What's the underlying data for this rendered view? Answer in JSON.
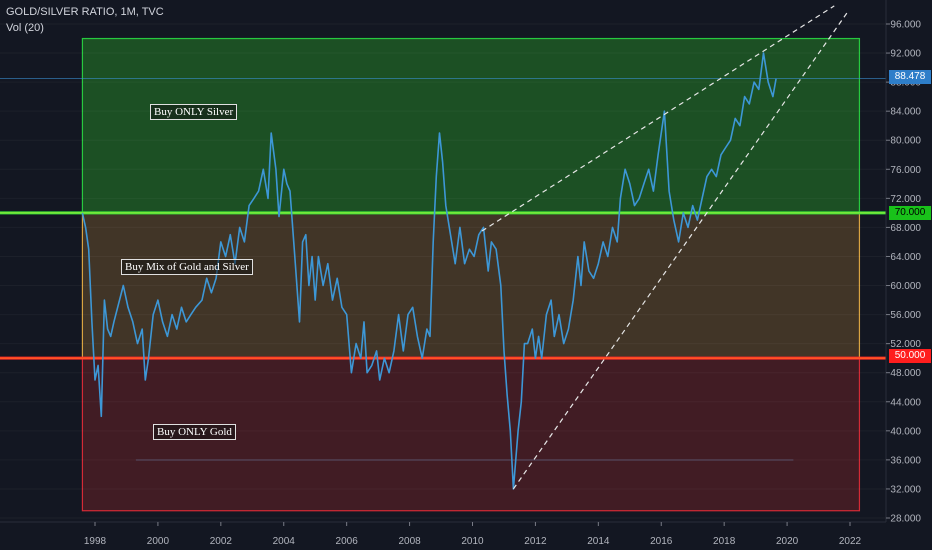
{
  "header": {
    "symbol_line": "GOLD/SILVER RATIO, 1M, TVC",
    "indicator_line": "Vol (20)"
  },
  "zones": [
    {
      "label": "Buy ONLY Silver",
      "from": 70,
      "to": 94,
      "fill": "#1e5b25",
      "border": "#27c93f"
    },
    {
      "label": "Buy Mix of Gold and Silver",
      "from": 50,
      "to": 70,
      "fill": "#4a3b28",
      "border": "#d9a441"
    },
    {
      "label": "Buy ONLY Gold",
      "from": 29,
      "to": 50,
      "fill": "#4a1d24",
      "border": "#d42a36"
    }
  ],
  "price_tags": {
    "current": "88.478",
    "upper": "70.000",
    "lower": "50.000"
  },
  "colors": {
    "background": "#131722",
    "series": "#3d97d6",
    "upper_line": "#39e639",
    "lower_line": "#ff2a2a",
    "trendline": "#e6e6e6"
  },
  "chart_data": {
    "type": "line",
    "title": "GOLD/SILVER RATIO, 1M, TVC",
    "xlabel": "",
    "ylabel": "",
    "xlim": [
      1996.6,
      2023.1
    ],
    "ylim": [
      27,
      99
    ],
    "x_ticks": [
      1998,
      2000,
      2002,
      2004,
      2006,
      2008,
      2010,
      2012,
      2014,
      2016,
      2018,
      2020,
      2022
    ],
    "y_ticks": [
      28,
      32,
      36,
      40,
      44,
      48,
      52,
      56,
      60,
      64,
      68,
      72,
      76,
      80,
      84,
      88,
      92,
      96
    ],
    "horizontal_levels": [
      {
        "name": "upper",
        "value": 70
      },
      {
        "name": "lower",
        "value": 50
      },
      {
        "name": "current",
        "value": 88.478
      }
    ],
    "trendlines": [
      {
        "from": [
          2010.3,
          67.5
        ],
        "to": [
          2021.5,
          98.5
        ]
      },
      {
        "from": [
          2011.3,
          32.0
        ],
        "to": [
          2021.9,
          97.5
        ]
      }
    ],
    "series": [
      {
        "values": [
          [
            1997.6,
            70.0
          ],
          [
            1997.7,
            68.0
          ],
          [
            1997.8,
            65.0
          ],
          [
            1997.9,
            55.0
          ],
          [
            1998.0,
            47.0
          ],
          [
            1998.1,
            49.0
          ],
          [
            1998.2,
            42.0
          ],
          [
            1998.3,
            58.0
          ],
          [
            1998.4,
            54.0
          ],
          [
            1998.5,
            53.0
          ],
          [
            1998.6,
            55.0
          ],
          [
            1998.75,
            57.5
          ],
          [
            1998.9,
            60.0
          ],
          [
            1999.05,
            57.0
          ],
          [
            1999.2,
            55.0
          ],
          [
            1999.35,
            52.0
          ],
          [
            1999.5,
            54.0
          ],
          [
            1999.6,
            47.0
          ],
          [
            1999.7,
            50.0
          ],
          [
            1999.85,
            56.0
          ],
          [
            2000.0,
            58.0
          ],
          [
            2000.15,
            55.0
          ],
          [
            2000.3,
            53.0
          ],
          [
            2000.45,
            56.0
          ],
          [
            2000.6,
            54.0
          ],
          [
            2000.75,
            57.0
          ],
          [
            2000.9,
            55.0
          ],
          [
            2001.05,
            56.0
          ],
          [
            2001.2,
            57.0
          ],
          [
            2001.4,
            58.0
          ],
          [
            2001.55,
            61.0
          ],
          [
            2001.7,
            59.0
          ],
          [
            2001.85,
            61.0
          ],
          [
            2002.0,
            66.0
          ],
          [
            2002.15,
            64.0
          ],
          [
            2002.3,
            67.0
          ],
          [
            2002.45,
            63.0
          ],
          [
            2002.6,
            68.0
          ],
          [
            2002.75,
            66.0
          ],
          [
            2002.9,
            71.0
          ],
          [
            2003.05,
            72.0
          ],
          [
            2003.2,
            73.0
          ],
          [
            2003.35,
            76.0
          ],
          [
            2003.5,
            72.0
          ],
          [
            2003.6,
            81.0
          ],
          [
            2003.75,
            76.0
          ],
          [
            2003.85,
            69.5
          ],
          [
            2004.0,
            76.0
          ],
          [
            2004.1,
            74.0
          ],
          [
            2004.2,
            73.0
          ],
          [
            2004.35,
            64.0
          ],
          [
            2004.5,
            55.0
          ],
          [
            2004.6,
            66.0
          ],
          [
            2004.7,
            67.0
          ],
          [
            2004.8,
            60.0
          ],
          [
            2004.9,
            64.0
          ],
          [
            2005.0,
            58.0
          ],
          [
            2005.1,
            64.0
          ],
          [
            2005.25,
            60.0
          ],
          [
            2005.4,
            63.0
          ],
          [
            2005.55,
            58.0
          ],
          [
            2005.7,
            61.0
          ],
          [
            2005.85,
            57.0
          ],
          [
            2006.0,
            56.0
          ],
          [
            2006.15,
            48.0
          ],
          [
            2006.3,
            52.0
          ],
          [
            2006.45,
            50.0
          ],
          [
            2006.55,
            55.0
          ],
          [
            2006.65,
            48.0
          ],
          [
            2006.8,
            49.0
          ],
          [
            2006.95,
            51.0
          ],
          [
            2007.05,
            47.0
          ],
          [
            2007.2,
            50.0
          ],
          [
            2007.35,
            48.0
          ],
          [
            2007.5,
            51.0
          ],
          [
            2007.65,
            56.0
          ],
          [
            2007.8,
            51.0
          ],
          [
            2007.95,
            56.0
          ],
          [
            2008.1,
            57.0
          ],
          [
            2008.25,
            53.0
          ],
          [
            2008.4,
            50.0
          ],
          [
            2008.55,
            54.0
          ],
          [
            2008.65,
            53.0
          ],
          [
            2008.75,
            66.0
          ],
          [
            2008.85,
            75.0
          ],
          [
            2008.95,
            81.0
          ],
          [
            2009.05,
            77.0
          ],
          [
            2009.15,
            71.0
          ],
          [
            2009.3,
            67.0
          ],
          [
            2009.45,
            63.0
          ],
          [
            2009.6,
            68.0
          ],
          [
            2009.75,
            63.0
          ],
          [
            2009.9,
            65.0
          ],
          [
            2010.05,
            64.0
          ],
          [
            2010.2,
            67.0
          ],
          [
            2010.35,
            68.0
          ],
          [
            2010.5,
            62.0
          ],
          [
            2010.6,
            66.0
          ],
          [
            2010.75,
            65.0
          ],
          [
            2010.9,
            60.0
          ],
          [
            2011.0,
            51.0
          ],
          [
            2011.1,
            45.0
          ],
          [
            2011.2,
            40.0
          ],
          [
            2011.3,
            32.0
          ],
          [
            2011.45,
            40.0
          ],
          [
            2011.55,
            44.0
          ],
          [
            2011.65,
            52.0
          ],
          [
            2011.75,
            52.0
          ],
          [
            2011.9,
            54.0
          ],
          [
            2012.0,
            50.0
          ],
          [
            2012.1,
            53.0
          ],
          [
            2012.2,
            50.0
          ],
          [
            2012.35,
            56.0
          ],
          [
            2012.5,
            58.0
          ],
          [
            2012.6,
            53.0
          ],
          [
            2012.75,
            56.0
          ],
          [
            2012.9,
            52.0
          ],
          [
            2013.05,
            54.0
          ],
          [
            2013.2,
            58.0
          ],
          [
            2013.35,
            64.0
          ],
          [
            2013.45,
            60.0
          ],
          [
            2013.55,
            66.0
          ],
          [
            2013.7,
            62.0
          ],
          [
            2013.85,
            61.0
          ],
          [
            2014.0,
            63.0
          ],
          [
            2014.15,
            66.0
          ],
          [
            2014.3,
            64.0
          ],
          [
            2014.45,
            68.0
          ],
          [
            2014.6,
            66.0
          ],
          [
            2014.7,
            72.0
          ],
          [
            2014.85,
            76.0
          ],
          [
            2015.0,
            74.0
          ],
          [
            2015.15,
            71.0
          ],
          [
            2015.3,
            72.0
          ],
          [
            2015.45,
            74.0
          ],
          [
            2015.6,
            76.0
          ],
          [
            2015.75,
            73.0
          ],
          [
            2015.9,
            78.0
          ],
          [
            2016.1,
            84.0
          ],
          [
            2016.25,
            73.0
          ],
          [
            2016.4,
            69.0
          ],
          [
            2016.55,
            66.0
          ],
          [
            2016.7,
            70.0
          ],
          [
            2016.85,
            68.0
          ],
          [
            2017.0,
            71.0
          ],
          [
            2017.15,
            69.0
          ],
          [
            2017.3,
            72.0
          ],
          [
            2017.45,
            75.0
          ],
          [
            2017.6,
            76.0
          ],
          [
            2017.75,
            75.0
          ],
          [
            2017.9,
            78.0
          ],
          [
            2018.05,
            79.0
          ],
          [
            2018.2,
            80.0
          ],
          [
            2018.35,
            83.0
          ],
          [
            2018.5,
            82.0
          ],
          [
            2018.65,
            86.0
          ],
          [
            2018.8,
            85.0
          ],
          [
            2018.95,
            88.0
          ],
          [
            2019.1,
            87.0
          ],
          [
            2019.25,
            92.0
          ],
          [
            2019.4,
            88.0
          ],
          [
            2019.55,
            86.0
          ],
          [
            2019.65,
            88.5
          ]
        ]
      }
    ]
  }
}
